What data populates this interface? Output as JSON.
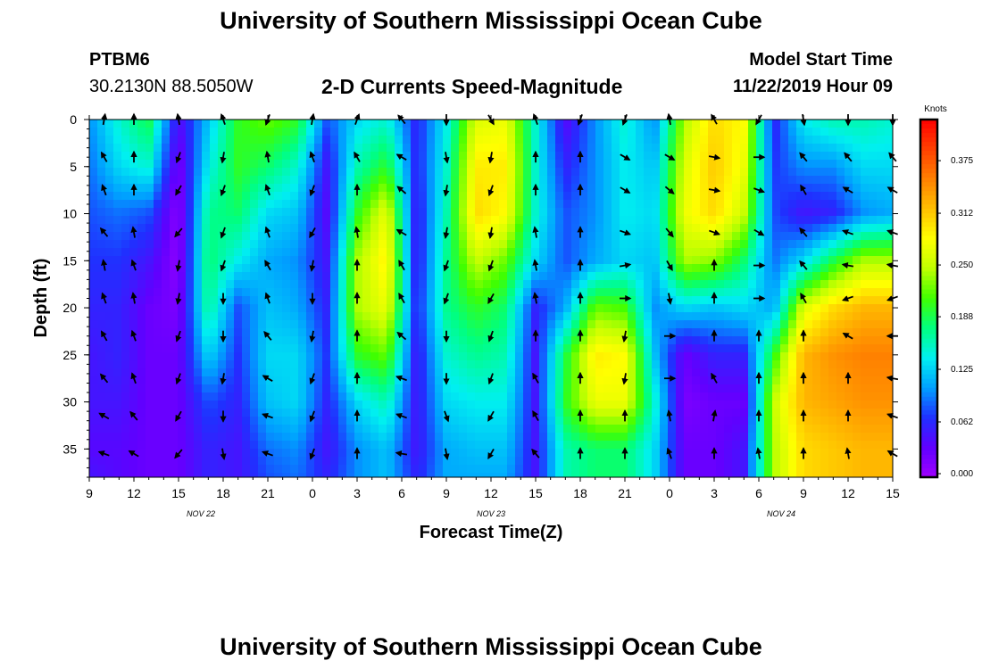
{
  "header": {
    "title": "University of Southern Mississippi Ocean Cube",
    "station": "PTBM6",
    "coords": "30.2130N 88.5050W",
    "subtitle": "2-D Currents Speed-Magnitude",
    "model_start_label": "Model Start Time",
    "model_start_value": "11/22/2019 Hour 09"
  },
  "footer": {
    "title": "University of Southern Mississippi Ocean Cube"
  },
  "colors": {
    "scale": [
      "#a000ff",
      "#6000ff",
      "#2030ff",
      "#00a0ff",
      "#00f0f0",
      "#00ff80",
      "#40ff00",
      "#c0ff00",
      "#ffff00",
      "#ffc000",
      "#ff8000",
      "#ff4000",
      "#ff0000"
    ],
    "arrow": "#000000"
  },
  "chart_data": {
    "type": "heatmap",
    "xlabel": "Forecast Time(Z)",
    "ylabel": "Depth (ft)",
    "x_ticks": [
      "9",
      "12",
      "15",
      "18",
      "21",
      "0",
      "3",
      "6",
      "9",
      "12",
      "15",
      "18",
      "21",
      "0",
      "3",
      "6",
      "9",
      "12",
      "15"
    ],
    "x_hours": [
      0,
      54
    ],
    "date_labels": [
      {
        "text": "NOV  22",
        "hour": 7.5
      },
      {
        "text": "NOV  23",
        "hour": 27
      },
      {
        "text": "NOV  24",
        "hour": 46.5
      }
    ],
    "y_ticks": [
      "0",
      "5",
      "10",
      "15",
      "20",
      "25",
      "30",
      "35"
    ],
    "ylim": [
      0,
      38
    ],
    "colorbar": {
      "title": "Knots",
      "ticks": [
        "0.000",
        "0.062",
        "0.125",
        "0.188",
        "0.250",
        "0.312",
        "0.375"
      ],
      "range": [
        0,
        0.42
      ]
    },
    "speed_field": {
      "hours": [
        0,
        2,
        4,
        6,
        8,
        10,
        12,
        14,
        16,
        18,
        20,
        22,
        24,
        26,
        28,
        30,
        32,
        34,
        36,
        38,
        40,
        42,
        44,
        46,
        48,
        50,
        52,
        54
      ],
      "depths": [
        0,
        5,
        10,
        15,
        20,
        25,
        30,
        35,
        38
      ],
      "values": [
        [
          0.1,
          0.09,
          0.08,
          0.07,
          0.06,
          0.05,
          0.05,
          0.04,
          0.05
        ],
        [
          0.15,
          0.13,
          0.09,
          0.07,
          0.06,
          0.06,
          0.05,
          0.04,
          0.04
        ],
        [
          0.19,
          0.15,
          0.08,
          0.05,
          0.03,
          0.03,
          0.03,
          0.03,
          0.03
        ],
        [
          0.04,
          0.02,
          0.01,
          0.01,
          0.02,
          0.03,
          0.03,
          0.03,
          0.03
        ],
        [
          0.12,
          0.14,
          0.17,
          0.18,
          0.17,
          0.13,
          0.08,
          0.06,
          0.06
        ],
        [
          0.2,
          0.2,
          0.18,
          0.14,
          0.08,
          0.07,
          0.06,
          0.05,
          0.05
        ],
        [
          0.22,
          0.18,
          0.13,
          0.11,
          0.12,
          0.13,
          0.12,
          0.09,
          0.08
        ],
        [
          0.2,
          0.15,
          0.12,
          0.1,
          0.11,
          0.13,
          0.13,
          0.1,
          0.09
        ],
        [
          0.08,
          0.05,
          0.04,
          0.05,
          0.06,
          0.07,
          0.06,
          0.05,
          0.06
        ],
        [
          0.13,
          0.16,
          0.2,
          0.24,
          0.24,
          0.2,
          0.13,
          0.1,
          0.1
        ],
        [
          0.15,
          0.2,
          0.27,
          0.29,
          0.27,
          0.22,
          0.16,
          0.12,
          0.12
        ],
        [
          0.06,
          0.06,
          0.05,
          0.05,
          0.06,
          0.05,
          0.05,
          0.05,
          0.06
        ],
        [
          0.14,
          0.15,
          0.16,
          0.17,
          0.17,
          0.15,
          0.13,
          0.11,
          0.11
        ],
        [
          0.26,
          0.29,
          0.3,
          0.25,
          0.2,
          0.17,
          0.14,
          0.12,
          0.11
        ],
        [
          0.27,
          0.29,
          0.28,
          0.22,
          0.18,
          0.16,
          0.14,
          0.12,
          0.11
        ],
        [
          0.15,
          0.15,
          0.15,
          0.13,
          0.06,
          0.05,
          0.05,
          0.05,
          0.05
        ],
        [
          0.04,
          0.06,
          0.08,
          0.08,
          0.11,
          0.19,
          0.2,
          0.16,
          0.16
        ],
        [
          0.1,
          0.1,
          0.1,
          0.11,
          0.22,
          0.29,
          0.27,
          0.18,
          0.18
        ],
        [
          0.15,
          0.14,
          0.14,
          0.13,
          0.21,
          0.28,
          0.27,
          0.18,
          0.18
        ],
        [
          0.1,
          0.12,
          0.13,
          0.12,
          0.1,
          0.12,
          0.15,
          0.13,
          0.13
        ],
        [
          0.24,
          0.26,
          0.27,
          0.24,
          0.13,
          0.03,
          0.02,
          0.03,
          0.03
        ],
        [
          0.3,
          0.31,
          0.3,
          0.23,
          0.12,
          0.06,
          0.03,
          0.03,
          0.03
        ],
        [
          0.28,
          0.27,
          0.25,
          0.18,
          0.13,
          0.06,
          0.03,
          0.05,
          0.05
        ],
        [
          0.06,
          0.07,
          0.08,
          0.09,
          0.11,
          0.2,
          0.25,
          0.24,
          0.24
        ],
        [
          0.14,
          0.1,
          0.05,
          0.13,
          0.26,
          0.32,
          0.32,
          0.3,
          0.3
        ],
        [
          0.16,
          0.1,
          0.06,
          0.19,
          0.3,
          0.34,
          0.33,
          0.31,
          0.31
        ],
        [
          0.16,
          0.13,
          0.1,
          0.24,
          0.32,
          0.35,
          0.34,
          0.32,
          0.32
        ],
        [
          0.15,
          0.13,
          0.11,
          0.24,
          0.32,
          0.35,
          0.34,
          0.32,
          0.32
        ]
      ]
    },
    "arrow_hours": [
      1,
      3,
      6,
      9,
      12,
      15,
      18,
      21,
      24,
      27,
      30,
      33,
      36,
      39,
      42,
      45,
      48,
      51,
      54
    ],
    "arrow_depths": [
      0,
      4,
      7.5,
      12,
      15.5,
      19,
      23,
      27.5,
      31.5,
      35.5
    ],
    "arrow_directions_deg": [
      [
        10,
        0,
        -10,
        -20,
        200,
        10,
        20,
        -40,
        180,
        150,
        -20,
        200,
        200,
        -10,
        -30,
        210,
        170,
        180,
        180
      ],
      [
        -30,
        0,
        200,
        190,
        -10,
        -20,
        -30,
        -60,
        170,
        190,
        0,
        0,
        120,
        120,
        100,
        90,
        -40,
        -40,
        -40
      ],
      [
        -20,
        0,
        210,
        200,
        -20,
        200,
        0,
        -50,
        190,
        200,
        0,
        0,
        120,
        130,
        100,
        110,
        -30,
        -60,
        -60
      ],
      [
        -40,
        -10,
        220,
        200,
        -20,
        210,
        -10,
        -60,
        190,
        190,
        -10,
        0,
        110,
        140,
        110,
        120,
        -40,
        -70,
        -70
      ],
      [
        -10,
        -20,
        190,
        200,
        -30,
        190,
        0,
        -30,
        200,
        200,
        -10,
        0,
        80,
        150,
        0,
        90,
        -40,
        -80,
        -80
      ],
      [
        -20,
        -10,
        190,
        180,
        -20,
        180,
        0,
        -30,
        200,
        210,
        -10,
        0,
        90,
        170,
        0,
        90,
        -30,
        -110,
        -110
      ],
      [
        -30,
        -20,
        200,
        180,
        -40,
        190,
        0,
        -50,
        180,
        200,
        0,
        0,
        190,
        90,
        0,
        0,
        0,
        -60,
        -90
      ],
      [
        -40,
        -20,
        200,
        190,
        -60,
        200,
        0,
        -70,
        180,
        200,
        -30,
        0,
        190,
        90,
        -30,
        0,
        0,
        0,
        -80
      ],
      [
        -60,
        -40,
        210,
        180,
        -70,
        200,
        0,
        -70,
        160,
        210,
        -30,
        0,
        0,
        -10,
        10,
        0,
        0,
        0,
        -70
      ],
      [
        -70,
        -60,
        220,
        170,
        -70,
        200,
        0,
        -80,
        170,
        210,
        -40,
        0,
        0,
        -20,
        0,
        -10,
        0,
        -10,
        -60
      ]
    ]
  }
}
